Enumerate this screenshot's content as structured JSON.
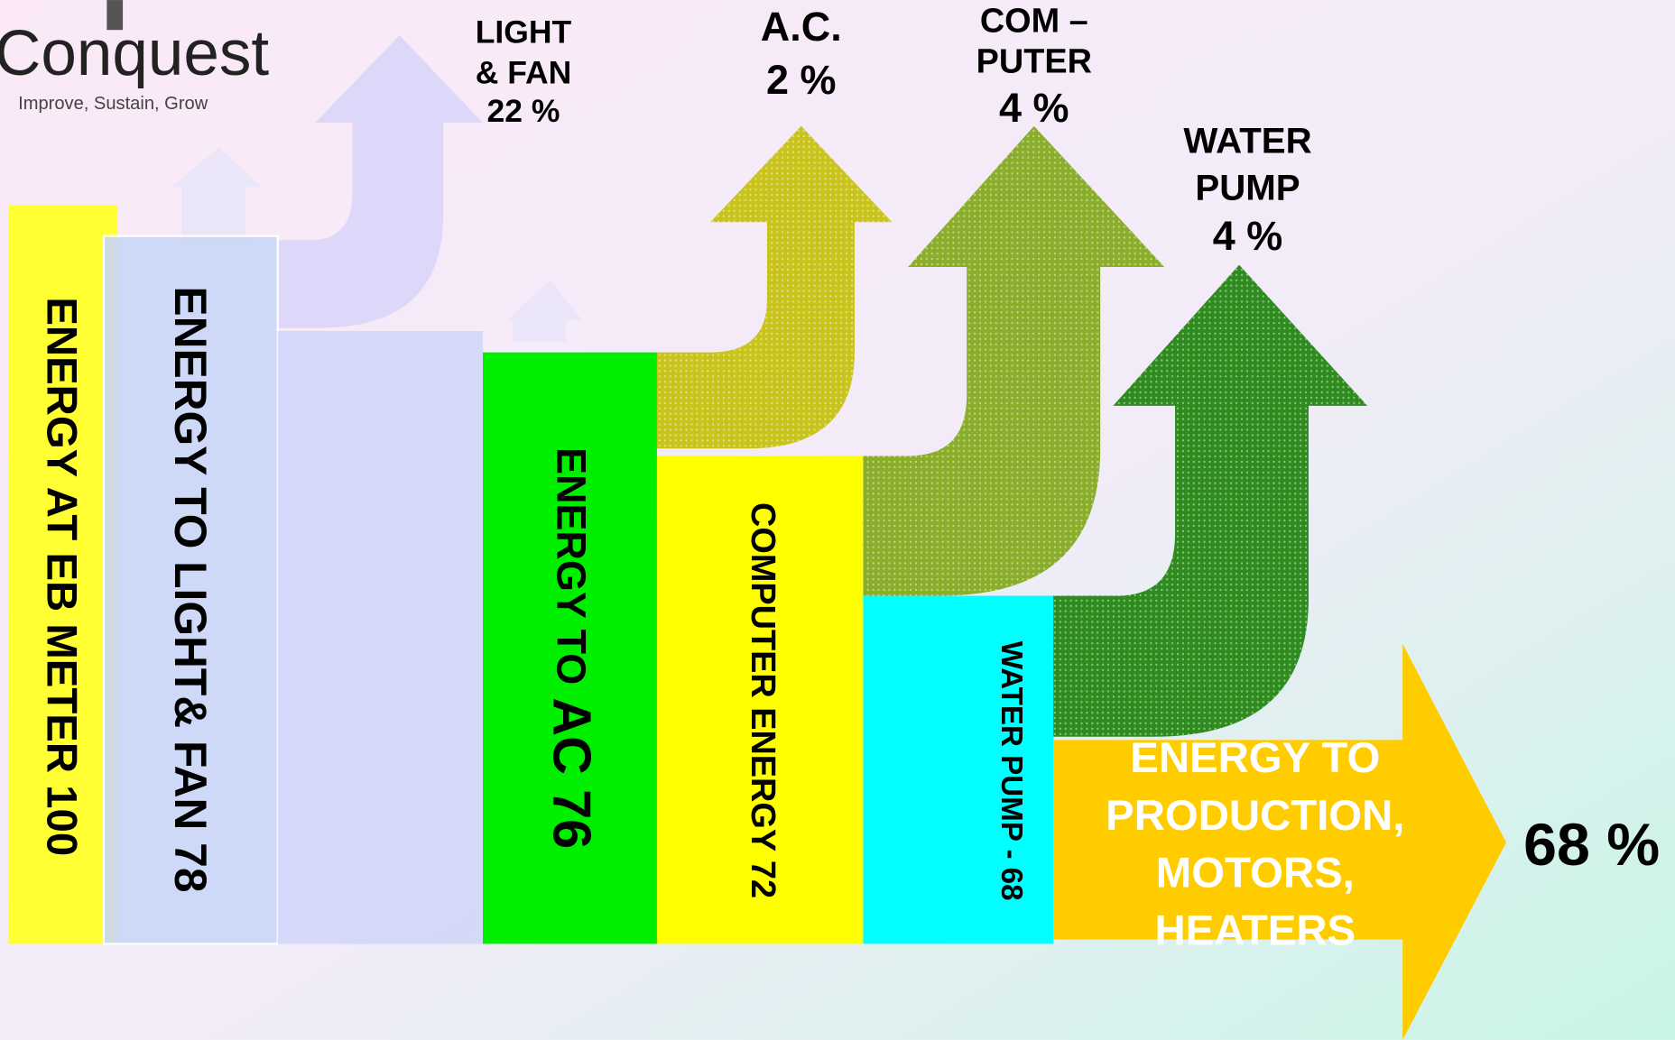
{
  "logo": {
    "title": "Conquest",
    "tagline": "Improve, Sustain, Grow"
  },
  "blocks": [
    {
      "label": "ENERGY AT EB METER 100"
    },
    {
      "label": "ENERGY TO LIGHT& FAN 78"
    },
    {
      "label_parts": [
        "ENERGY TO",
        "AC 76"
      ]
    },
    {
      "label": "COMPUTER ENERGY 72"
    },
    {
      "label": "WATER PUMP - 68"
    },
    {
      "label_lines": [
        "ENERGY TO",
        "PRODUCTION,",
        "MOTORS,",
        "HEATERS"
      ]
    }
  ],
  "losses": [
    {
      "lines": [
        "LIGHT",
        "& FAN",
        "22 %"
      ]
    },
    {
      "lines": [
        "A.C.",
        "2 %"
      ]
    },
    {
      "lines": [
        "COM –",
        "PUTER",
        "4 %"
      ]
    },
    {
      "lines": [
        "WATER",
        "PUMP",
        "4 %"
      ]
    }
  ],
  "output": "68 %"
}
